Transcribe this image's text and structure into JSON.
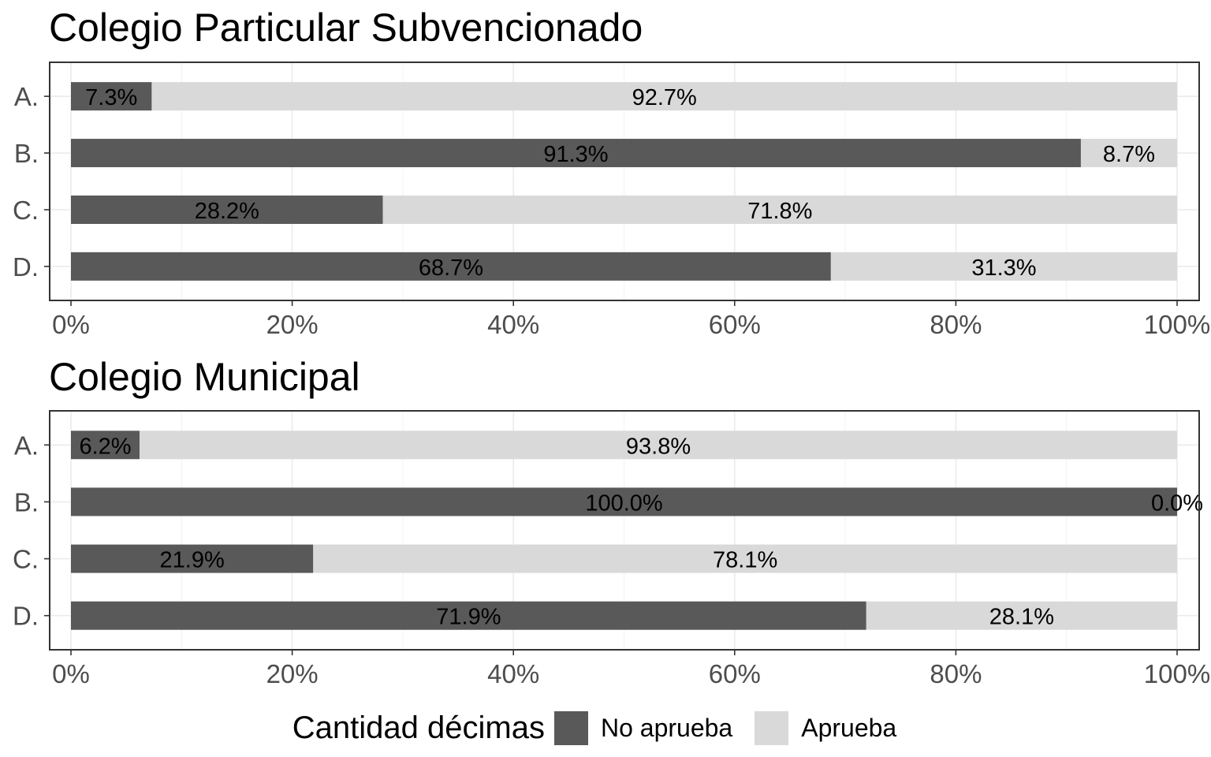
{
  "chart_data": [
    {
      "type": "bar",
      "orientation": "horizontal",
      "stacked": "percent",
      "title": "Colegio Particular Subvencionado",
      "categories": [
        "A.",
        "B.",
        "C.",
        "D."
      ],
      "series": [
        {
          "name": "No aprueba",
          "color": "#595959",
          "values": [
            7.3,
            91.3,
            28.2,
            68.7
          ]
        },
        {
          "name": "Aprueba",
          "color": "#d9d9d9",
          "values": [
            92.7,
            8.7,
            71.8,
            31.3
          ]
        }
      ],
      "data_labels": [
        [
          "7.3%",
          "91.3%",
          "28.2%",
          "68.7%"
        ],
        [
          "92.7%",
          "8.7%",
          "71.8%",
          "31.3%"
        ]
      ],
      "x_ticks": [
        "0%",
        "20%",
        "40%",
        "60%",
        "80%",
        "100%"
      ],
      "xlim": [
        0,
        100
      ],
      "grid": true
    },
    {
      "type": "bar",
      "orientation": "horizontal",
      "stacked": "percent",
      "title": "Colegio Municipal",
      "categories": [
        "A.",
        "B.",
        "C.",
        "D."
      ],
      "series": [
        {
          "name": "No aprueba",
          "color": "#595959",
          "values": [
            6.2,
            100.0,
            21.9,
            71.9
          ]
        },
        {
          "name": "Aprueba",
          "color": "#d9d9d9",
          "values": [
            93.8,
            0.0,
            78.1,
            28.1
          ]
        }
      ],
      "data_labels": [
        [
          "6.2%",
          "100.0%",
          "21.9%",
          "71.9%"
        ],
        [
          "93.8%",
          "0.0%",
          "78.1%",
          "28.1%"
        ]
      ],
      "x_ticks": [
        "0%",
        "20%",
        "40%",
        "60%",
        "80%",
        "100%"
      ],
      "xlim": [
        0,
        100
      ],
      "grid": true
    }
  ],
  "legend": {
    "title": "Cantidad décimas",
    "position": "bottom",
    "items": [
      {
        "label": "No aprueba",
        "color": "#595959"
      },
      {
        "label": "Aprueba",
        "color": "#d9d9d9"
      }
    ]
  }
}
